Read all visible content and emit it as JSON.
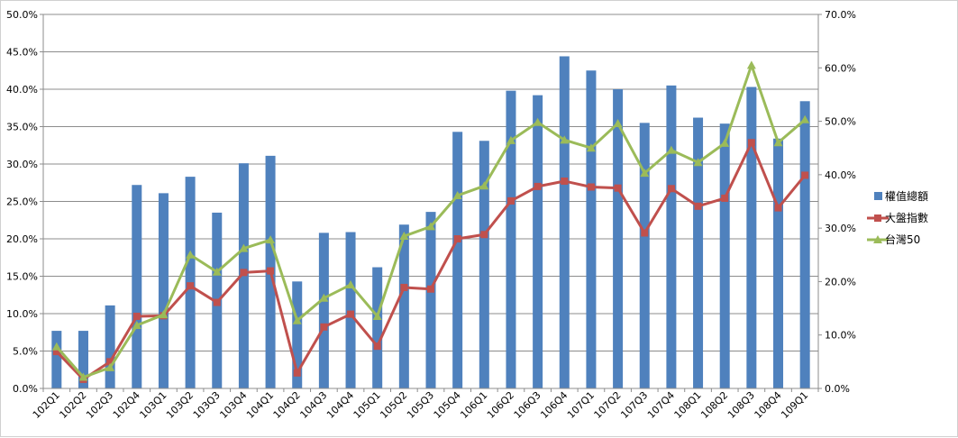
{
  "chart_data": {
    "type": "bar",
    "categories": [
      "102Q1",
      "102Q2",
      "102Q3",
      "102Q4",
      "103Q1",
      "103Q2",
      "103Q3",
      "103Q4",
      "104Q1",
      "104Q2",
      "104Q3",
      "104Q4",
      "105Q1",
      "105Q2",
      "105Q3",
      "105Q4",
      "106Q1",
      "106Q2",
      "106Q3",
      "106Q4",
      "107Q1",
      "107Q2",
      "107Q3",
      "107Q4",
      "108Q1",
      "108Q2",
      "108Q3",
      "108Q4",
      "109Q1"
    ],
    "y_left": {
      "min": 0,
      "max": 50,
      "step": 5,
      "ticks": [
        "0.0%",
        "5.0%",
        "10.0%",
        "15.0%",
        "20.0%",
        "25.0%",
        "30.0%",
        "35.0%",
        "40.0%",
        "45.0%",
        "50.0%"
      ]
    },
    "y_right": {
      "min": 0,
      "max": 70,
      "step": 10,
      "ticks": [
        "0.0%",
        "10.0%",
        "20.0%",
        "30.0%",
        "40.0%",
        "50.0%",
        "60.0%",
        "70.0%"
      ]
    },
    "grid": true,
    "legend_position": "right",
    "series": [
      {
        "name": "權值總額",
        "kind": "bar",
        "axis": "left",
        "color": "#4f81bd",
        "values": [
          7.7,
          7.7,
          11.1,
          27.2,
          26.1,
          28.3,
          23.5,
          30.1,
          31.1,
          14.3,
          20.8,
          20.9,
          16.2,
          21.9,
          23.6,
          34.3,
          33.1,
          39.8,
          39.2,
          44.4,
          42.5,
          40.0,
          35.5,
          40.5,
          36.2,
          35.4,
          40.3,
          33.4,
          38.4
        ]
      },
      {
        "name": "大盤指數",
        "kind": "line",
        "axis": "right",
        "color": "#c0504d",
        "marker": "square",
        "values": [
          6.9,
          1.7,
          5.0,
          13.5,
          13.6,
          19.2,
          16.1,
          21.7,
          22.0,
          2.9,
          11.5,
          13.9,
          7.9,
          18.9,
          18.6,
          28.0,
          28.8,
          35.1,
          37.8,
          38.8,
          37.7,
          37.5,
          29.1,
          37.4,
          34.1,
          35.6,
          46.0,
          33.8,
          39.9
        ]
      },
      {
        "name": "台灣50",
        "kind": "line",
        "axis": "right",
        "color": "#9bbb59",
        "marker": "triangle",
        "values": [
          7.8,
          2.1,
          3.9,
          11.8,
          13.8,
          25.0,
          21.8,
          26.2,
          27.8,
          12.7,
          16.9,
          19.4,
          13.5,
          28.5,
          30.3,
          36.1,
          37.9,
          46.4,
          49.8,
          46.5,
          45.0,
          49.6,
          40.3,
          44.6,
          42.3,
          45.9,
          60.5,
          46.0,
          50.3
        ]
      }
    ]
  }
}
